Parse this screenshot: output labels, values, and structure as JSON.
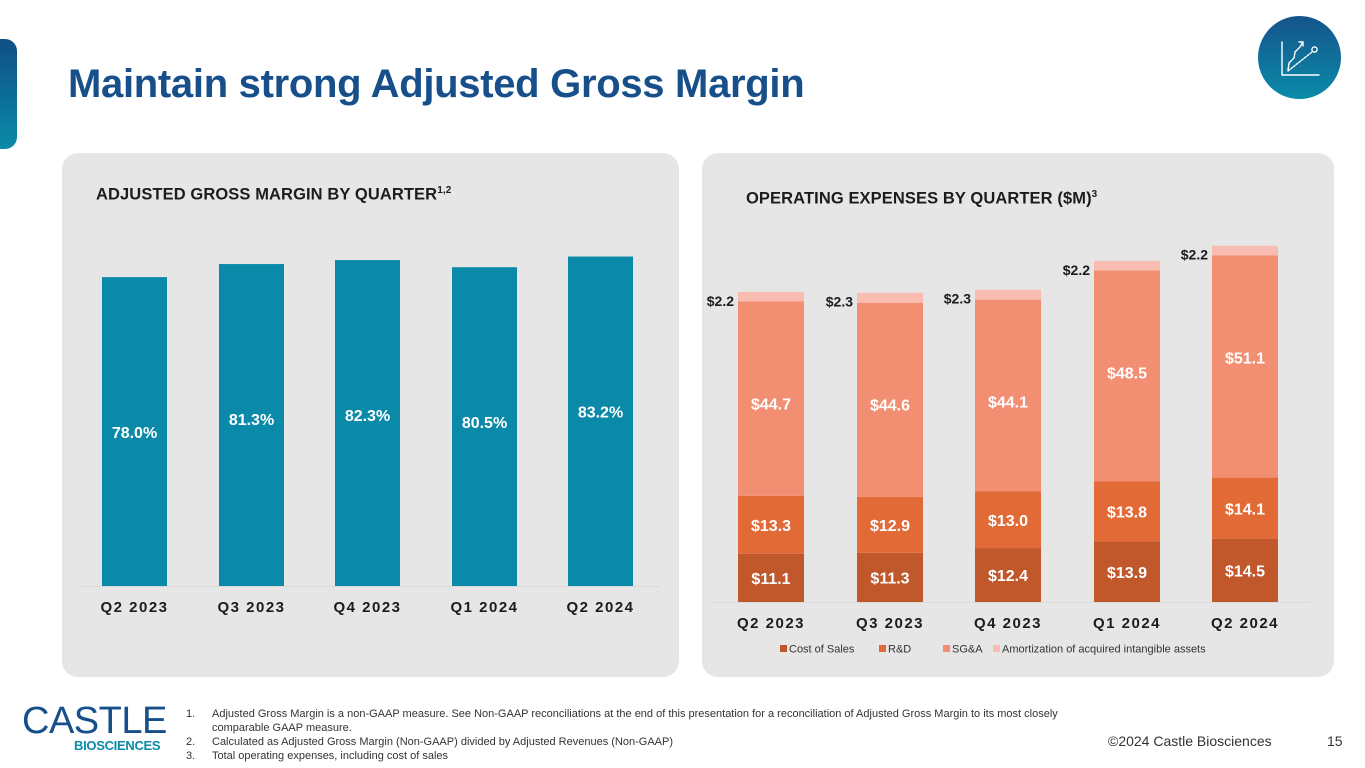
{
  "slide": {
    "title": "Maintain strong Adjusted Gross Margin",
    "page_number": "15",
    "copyright": "©2024 Castle Biosciences",
    "icon": "growth-chart-icon"
  },
  "logo": {
    "main": "CASTLE",
    "sub": "BIOSCIENCES"
  },
  "left_panel": {
    "title": "ADJUSTED GROSS MARGIN BY QUARTER",
    "title_sup": "1,2"
  },
  "right_panel": {
    "title": "OPERATING EXPENSES BY QUARTER ($M)",
    "title_sup": "3"
  },
  "footnotes": [
    {
      "num": "1.",
      "text": "Adjusted Gross Margin is a non-GAAP measure. See Non-GAAP reconciliations at the end of this presentation for a reconciliation of Adjusted Gross Margin to its most closely comparable GAAP measure."
    },
    {
      "num": "2.",
      "text": "Calculated as Adjusted Gross Margin (Non-GAAP) divided by Adjusted Revenues (Non-GAAP)"
    },
    {
      "num": "3.",
      "text": "Total operating expenses, including cost of sales"
    }
  ],
  "colors": {
    "title": "#164f8a",
    "margin_bar": "#0a8aa8",
    "cost_of_sales": "#c0582c",
    "rnd": "#e26a37",
    "sga": "#f28f73",
    "amortization": "#f8bdb0"
  },
  "chart_data": [
    {
      "type": "bar",
      "title": "ADJUSTED GROSS MARGIN BY QUARTER",
      "categories": [
        "Q2 2023",
        "Q3 2023",
        "Q4 2023",
        "Q1 2024",
        "Q2 2024"
      ],
      "values": [
        78.0,
        81.3,
        82.3,
        80.5,
        83.2
      ],
      "data_labels": [
        "78.0%",
        "81.3%",
        "82.3%",
        "80.5%",
        "83.2%"
      ],
      "xlabel": "",
      "ylabel": "",
      "ylim": [
        0,
        100
      ],
      "grid": false,
      "legend": "none"
    },
    {
      "type": "bar",
      "stacked": true,
      "title": "OPERATING EXPENSES BY QUARTER ($M)",
      "categories": [
        "Q2 2023",
        "Q3 2023",
        "Q4 2023",
        "Q1 2024",
        "Q2 2024"
      ],
      "series": [
        {
          "name": "Cost of Sales",
          "values": [
            11.1,
            11.3,
            12.4,
            13.9,
            14.5
          ],
          "labels": [
            "$11.1",
            "$11.3",
            "$12.4",
            "$13.9",
            "$14.5"
          ]
        },
        {
          "name": "R&D",
          "values": [
            13.3,
            12.9,
            13.0,
            13.8,
            14.1
          ],
          "labels": [
            "$13.3",
            "$12.9",
            "$13.0",
            "$13.8",
            "$14.1"
          ]
        },
        {
          "name": "SG&A",
          "values": [
            44.7,
            44.6,
            44.1,
            48.5,
            51.1
          ],
          "labels": [
            "$44.7",
            "$44.6",
            "$44.1",
            "$48.5",
            "$51.1"
          ]
        },
        {
          "name": "Amortization of acquired intangible assets",
          "values": [
            2.2,
            2.3,
            2.3,
            2.2,
            2.2
          ],
          "labels": [
            "$2.2",
            "$2.3",
            "$2.3",
            "$2.2",
            "$2.2"
          ]
        }
      ],
      "xlabel": "",
      "ylabel": "",
      "ylim": [
        0,
        90
      ],
      "grid": false,
      "legend": "bottom"
    }
  ]
}
